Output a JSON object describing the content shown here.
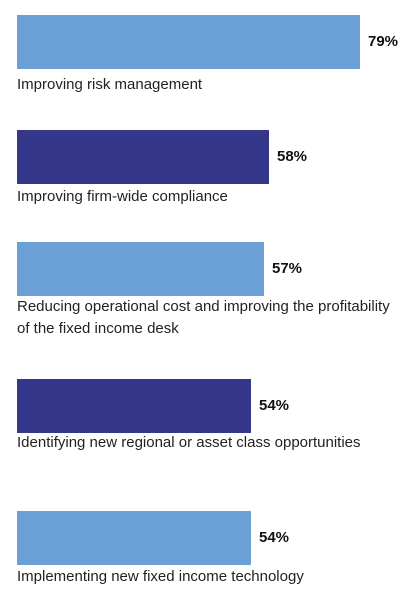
{
  "chart_data": {
    "type": "bar",
    "orientation": "horizontal",
    "title": "",
    "xlabel": "",
    "ylabel": "",
    "value_suffix": "%",
    "xlim": [
      0,
      79
    ],
    "categories": [
      "Improving risk management",
      "Improving firm-wide compliance",
      "Reducing operational cost and improving the profitability of the fixed income desk",
      "Identifying new regional or asset class opportunities",
      "Implementing new fixed income technology"
    ],
    "values": [
      79,
      58,
      57,
      54,
      54
    ],
    "value_labels": [
      "79%",
      "58%",
      "57%",
      "54%",
      "54%"
    ],
    "bar_colors": [
      "#6aa0d6",
      "#35388a",
      "#6aa0d6",
      "#35388a",
      "#6aa0d6"
    ],
    "grid": false,
    "legend": "none"
  }
}
